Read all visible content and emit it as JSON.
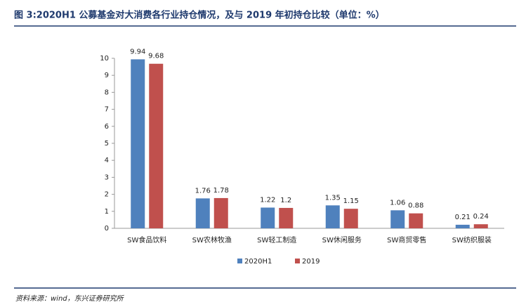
{
  "chart_data": {
    "type": "bar",
    "title": "图 3:2020H1 公募基金对大消费各行业持仓情况，及与 2019 年初持仓比较（单位：%）",
    "source": "资料来源：wind，东兴证券研究所",
    "categories": [
      "SW食品饮料",
      "SW农林牧渔",
      "SW轻工制造",
      "SW休闲服务",
      "SW商贸零售",
      "SW纺织服装"
    ],
    "series": [
      {
        "name": "2020H1",
        "color": "#4f81bd",
        "values": [
          9.94,
          1.76,
          1.22,
          1.35,
          1.06,
          0.21
        ]
      },
      {
        "name": "2019",
        "color": "#c0504d",
        "values": [
          9.68,
          1.78,
          1.2,
          1.15,
          0.88,
          0.24
        ]
      }
    ],
    "ylim": [
      0,
      10
    ],
    "yticks": [
      0,
      1,
      2,
      3,
      4,
      5,
      6,
      7,
      8,
      9,
      10
    ]
  }
}
